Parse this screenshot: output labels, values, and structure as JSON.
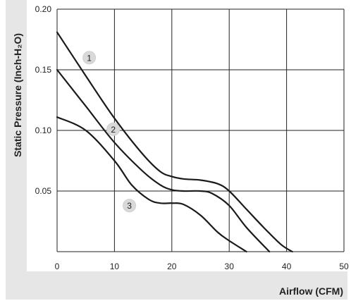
{
  "chart_data": {
    "type": "line",
    "xlabel": "Airflow (CFM)",
    "ylabel": "Static Pressure (Inch-H₂O)",
    "xlim": [
      0,
      50
    ],
    "ylim": [
      0,
      0.2
    ],
    "x_ticks": [
      "0",
      "10",
      "20",
      "30",
      "40",
      "50"
    ],
    "y_ticks": [
      "0.20",
      "0.15",
      "0.10",
      "0.05"
    ],
    "grid": true,
    "series": [
      {
        "name": "1",
        "x": [
          0,
          5,
          10,
          15,
          18,
          20,
          22,
          25,
          28,
          30,
          33,
          36,
          39,
          41
        ],
        "y": [
          0.181,
          0.145,
          0.11,
          0.08,
          0.066,
          0.062,
          0.06,
          0.059,
          0.056,
          0.05,
          0.035,
          0.02,
          0.006,
          0
        ]
      },
      {
        "name": "2",
        "x": [
          0,
          5,
          10,
          15,
          18,
          20,
          22,
          25,
          27,
          30,
          33,
          37
        ],
        "y": [
          0.15,
          0.12,
          0.09,
          0.066,
          0.055,
          0.051,
          0.05,
          0.05,
          0.048,
          0.038,
          0.02,
          0
        ]
      },
      {
        "name": "3",
        "x": [
          0,
          5,
          10,
          13,
          16,
          18,
          20,
          22,
          25,
          28,
          30,
          33
        ],
        "y": [
          0.111,
          0.1,
          0.075,
          0.055,
          0.043,
          0.04,
          0.04,
          0.039,
          0.03,
          0.016,
          0.009,
          0
        ]
      }
    ],
    "curve_labels": [
      {
        "text": "1",
        "x": 5.6,
        "y": 0.16
      },
      {
        "text": "2",
        "x": 9.8,
        "y": 0.101
      },
      {
        "text": "3",
        "x": 12.6,
        "y": 0.038
      }
    ]
  }
}
